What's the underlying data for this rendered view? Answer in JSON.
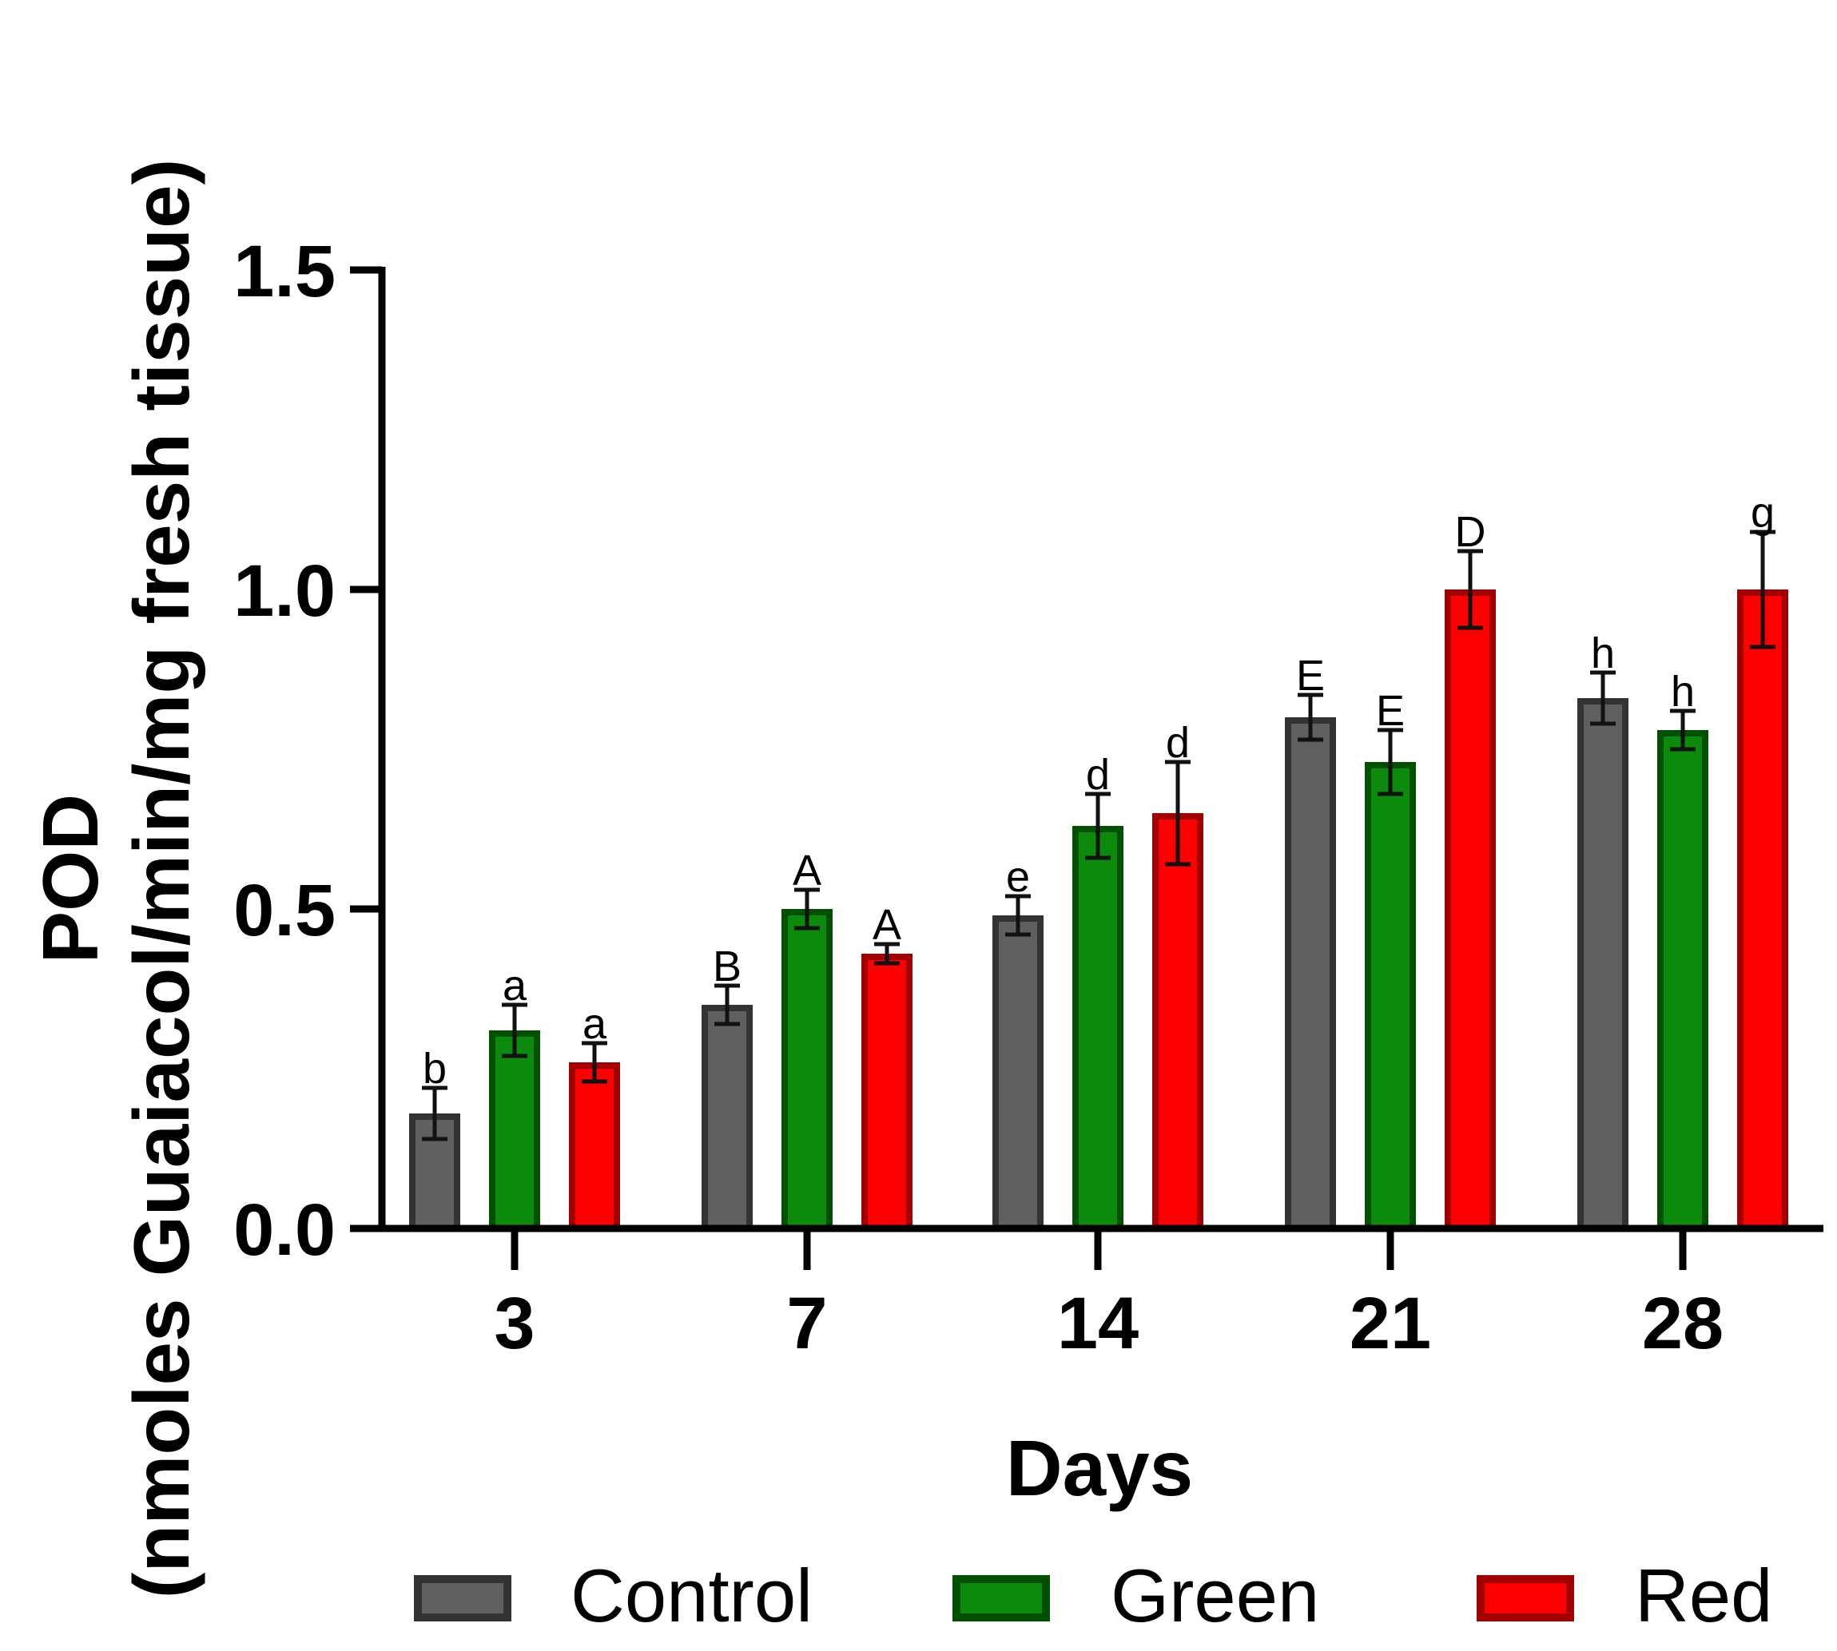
{
  "chart_data": {
    "type": "bar",
    "title": "",
    "xlabel": "Days",
    "ylabel_line1": "POD",
    "ylabel_line2": "(nmoles Guaiacol/min/mg fresh tissue)",
    "ylim": [
      0,
      1.5
    ],
    "yticks": [
      "0.0",
      "0.5",
      "1.0",
      "1.5"
    ],
    "ytick_values": [
      0,
      0.5,
      1.0,
      1.5
    ],
    "categories": [
      "3",
      "7",
      "14",
      "21",
      "28"
    ],
    "legend_position": "bottom",
    "series": [
      {
        "name": "Control",
        "fill": "#606060",
        "stroke": "#333333",
        "values": [
          0.18,
          0.35,
          0.49,
          0.8,
          0.83
        ],
        "errors": [
          0.04,
          0.03,
          0.03,
          0.035,
          0.04
        ],
        "labels": [
          "b",
          "B",
          "e",
          "E",
          "h"
        ]
      },
      {
        "name": "Green",
        "fill": "#0b8a0b",
        "stroke": "#005000",
        "values": [
          0.31,
          0.5,
          0.63,
          0.73,
          0.78
        ],
        "errors": [
          0.04,
          0.03,
          0.05,
          0.05,
          0.03
        ],
        "labels": [
          "a",
          "A",
          "d",
          "E",
          "h"
        ]
      },
      {
        "name": "Red",
        "fill": "#ff0000",
        "stroke": "#a00000",
        "values": [
          0.26,
          0.43,
          0.65,
          1.0,
          1.0
        ],
        "errors": [
          0.03,
          0.015,
          0.08,
          0.06,
          0.09
        ],
        "labels": [
          "a",
          "A",
          "d",
          "D",
          "g"
        ]
      }
    ]
  }
}
